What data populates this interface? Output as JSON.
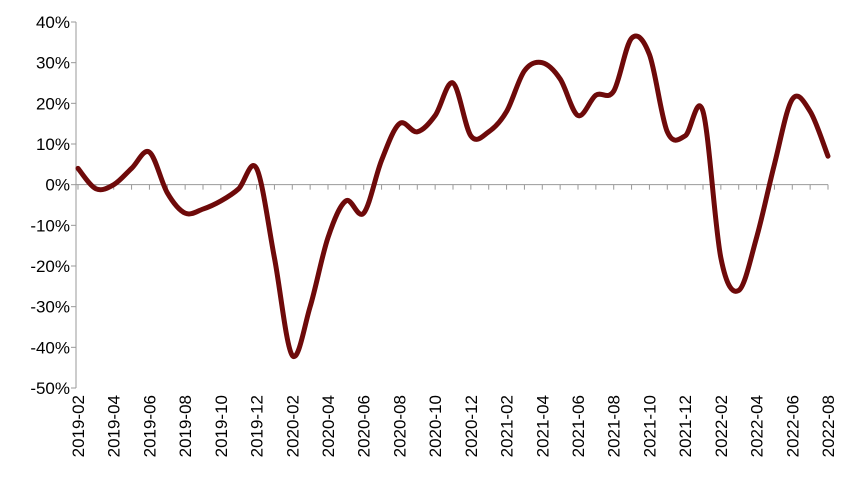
{
  "chart_data": {
    "type": "line",
    "categories": [
      "2019-02",
      null,
      "2019-04",
      null,
      "2019-06",
      null,
      "2019-08",
      null,
      "2019-10",
      null,
      "2019-12",
      null,
      "2020-02",
      null,
      "2020-04",
      null,
      "2020-06",
      null,
      "2020-08",
      null,
      "2020-10",
      null,
      "2020-12",
      null,
      "2021-02",
      null,
      "2021-04",
      null,
      "2021-06",
      null,
      "2021-08",
      null,
      "2021-10",
      null,
      "2021-12",
      null,
      "2022-02",
      null,
      "2022-04",
      null,
      "2022-06",
      null,
      "2022-08"
    ],
    "series": [
      {
        "color": "#6e0a0a",
        "values": [
          4,
          -1,
          0,
          4,
          8,
          -2,
          -7,
          -6,
          -4,
          -1,
          4,
          -18,
          -42,
          -30,
          -13,
          -4,
          -7,
          6,
          15,
          13,
          17,
          25,
          12,
          13,
          18,
          28,
          30,
          26,
          17,
          22,
          23,
          36,
          32,
          13,
          12,
          18,
          -18,
          -26,
          -13,
          5,
          21,
          18,
          7
        ]
      }
    ],
    "ylim": [
      -50,
      40
    ],
    "yticks": [
      {
        "value": 40,
        "label": "40%"
      },
      {
        "value": 30,
        "label": "30%"
      },
      {
        "value": 20,
        "label": "20%"
      },
      {
        "value": 10,
        "label": "10%"
      },
      {
        "value": 0,
        "label": "0%"
      },
      {
        "value": -10,
        "label": "-10%"
      },
      {
        "value": -20,
        "label": "-20%"
      },
      {
        "value": -30,
        "label": "-30%"
      },
      {
        "value": -40,
        "label": "-40%"
      },
      {
        "value": -50,
        "label": "-50%"
      }
    ],
    "grid": false
  }
}
